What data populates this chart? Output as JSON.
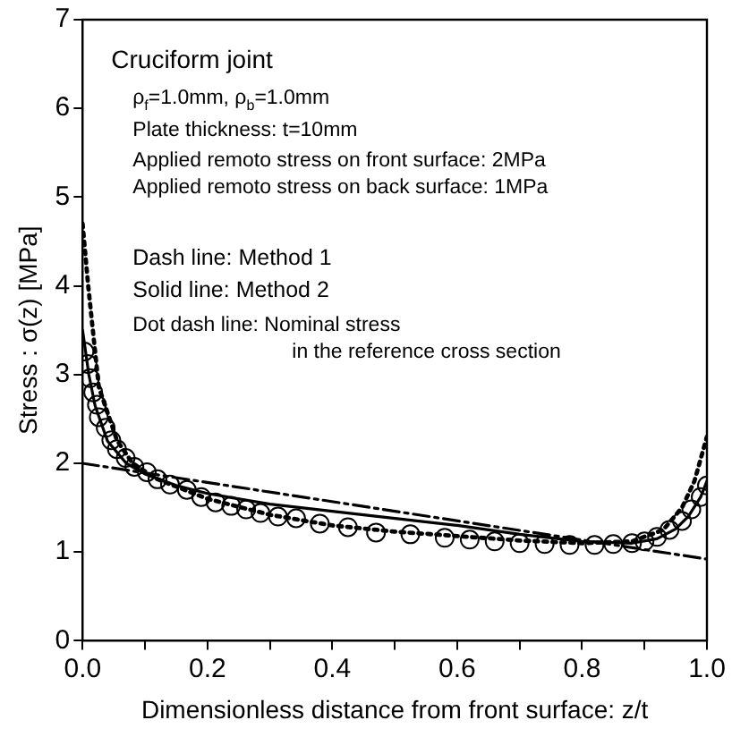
{
  "chart_data": {
    "type": "line",
    "xlabel": "Dimensionless distance from front surface: z/t",
    "ylabel": "Stress : σ(z) [MPa]",
    "xlim": [
      0,
      1
    ],
    "xticks": [
      {
        "value": 0,
        "label": "0.0"
      },
      {
        "value": 0.1,
        "label": null
      },
      0.2,
      {
        "value": 0.3,
        "label": null
      },
      0.4,
      {
        "value": 0.5,
        "label": null
      },
      0.6,
      {
        "value": 0.7,
        "label": null
      },
      0.8,
      {
        "value": 0.9,
        "label": null
      },
      {
        "value": 1,
        "label": "1.0"
      }
    ],
    "ylim": [
      0,
      7
    ],
    "yticks": [
      0,
      1,
      2,
      3,
      4,
      5,
      6,
      7
    ],
    "grid": false,
    "legend": false,
    "annotations": [
      "Cruciform joint",
      "ρ$_{f}$=1.0mm, ρ$_{b}$=1.0mm",
      "Plate thickness: t=10mm",
      "Applied remoto stress on front surface: 2MPa",
      "Applied remoto stress on back surface: 1MPa",
      "Dash line: Method 1",
      "Solid line: Method 2",
      "Dot dash line: Nominal stress",
      "in the reference cross section"
    ],
    "series": [
      {
        "type": "scatter",
        "marker": "circle",
        "color": "#000000",
        "x": [
          0.003,
          0.008,
          0.012,
          0.017,
          0.023,
          0.026,
          0.037,
          0.046,
          0.055,
          0.069,
          0.083,
          0.103,
          0.12,
          0.14,
          0.167,
          0.19,
          0.213,
          0.238,
          0.262,
          0.285,
          0.313,
          0.342,
          0.38,
          0.425,
          0.47,
          0.525,
          0.58,
          0.62,
          0.66,
          0.7,
          0.74,
          0.78,
          0.82,
          0.85,
          0.88,
          0.9,
          0.92,
          0.94,
          0.96,
          0.975,
          0.99,
          1.0
        ],
        "values": [
          3.26,
          3.12,
          2.96,
          2.8,
          2.66,
          2.52,
          2.4,
          2.26,
          2.16,
          2.06,
          1.96,
          1.9,
          1.82,
          1.76,
          1.7,
          1.62,
          1.56,
          1.52,
          1.48,
          1.44,
          1.4,
          1.38,
          1.32,
          1.28,
          1.22,
          1.2,
          1.16,
          1.14,
          1.12,
          1.1,
          1.09,
          1.08,
          1.08,
          1.09,
          1.1,
          1.12,
          1.17,
          1.25,
          1.35,
          1.48,
          1.62,
          1.75
        ]
      },
      {
        "type": "line",
        "marker": "none",
        "line_style": "dotted",
        "color": "#000000",
        "x": [
          0,
          0.009,
          0.026,
          0.055,
          0.08,
          0.12,
          0.2,
          0.3,
          0.4,
          0.5,
          0.6,
          0.7,
          0.8,
          0.88,
          0.93,
          0.96,
          0.98,
          1.0
        ],
        "values": [
          4.7,
          4.0,
          2.86,
          2.26,
          2.0,
          1.82,
          1.6,
          1.42,
          1.3,
          1.23,
          1.18,
          1.13,
          1.1,
          1.12,
          1.25,
          1.5,
          1.8,
          2.3
        ]
      },
      {
        "type": "line",
        "marker": "none",
        "line_style": "solid",
        "color": "#000000",
        "x": [
          0,
          0.01,
          0.02,
          0.04,
          0.07,
          0.1,
          0.15,
          0.2,
          0.3,
          0.35,
          0.45,
          0.6,
          0.7,
          0.8,
          0.88,
          0.92,
          0.95,
          0.97,
          0.99,
          1.0
        ],
        "values": [
          3.5,
          3.0,
          2.65,
          2.25,
          2.0,
          1.88,
          1.75,
          1.66,
          1.54,
          1.5,
          1.42,
          1.3,
          1.2,
          1.12,
          1.1,
          1.15,
          1.26,
          1.4,
          1.62,
          1.8
        ]
      },
      {
        "type": "line",
        "marker": "none",
        "line_style": "dashed",
        "color": "#000000",
        "x": [
          0,
          1
        ],
        "values": [
          2.0,
          0.92
        ]
      }
    ]
  }
}
